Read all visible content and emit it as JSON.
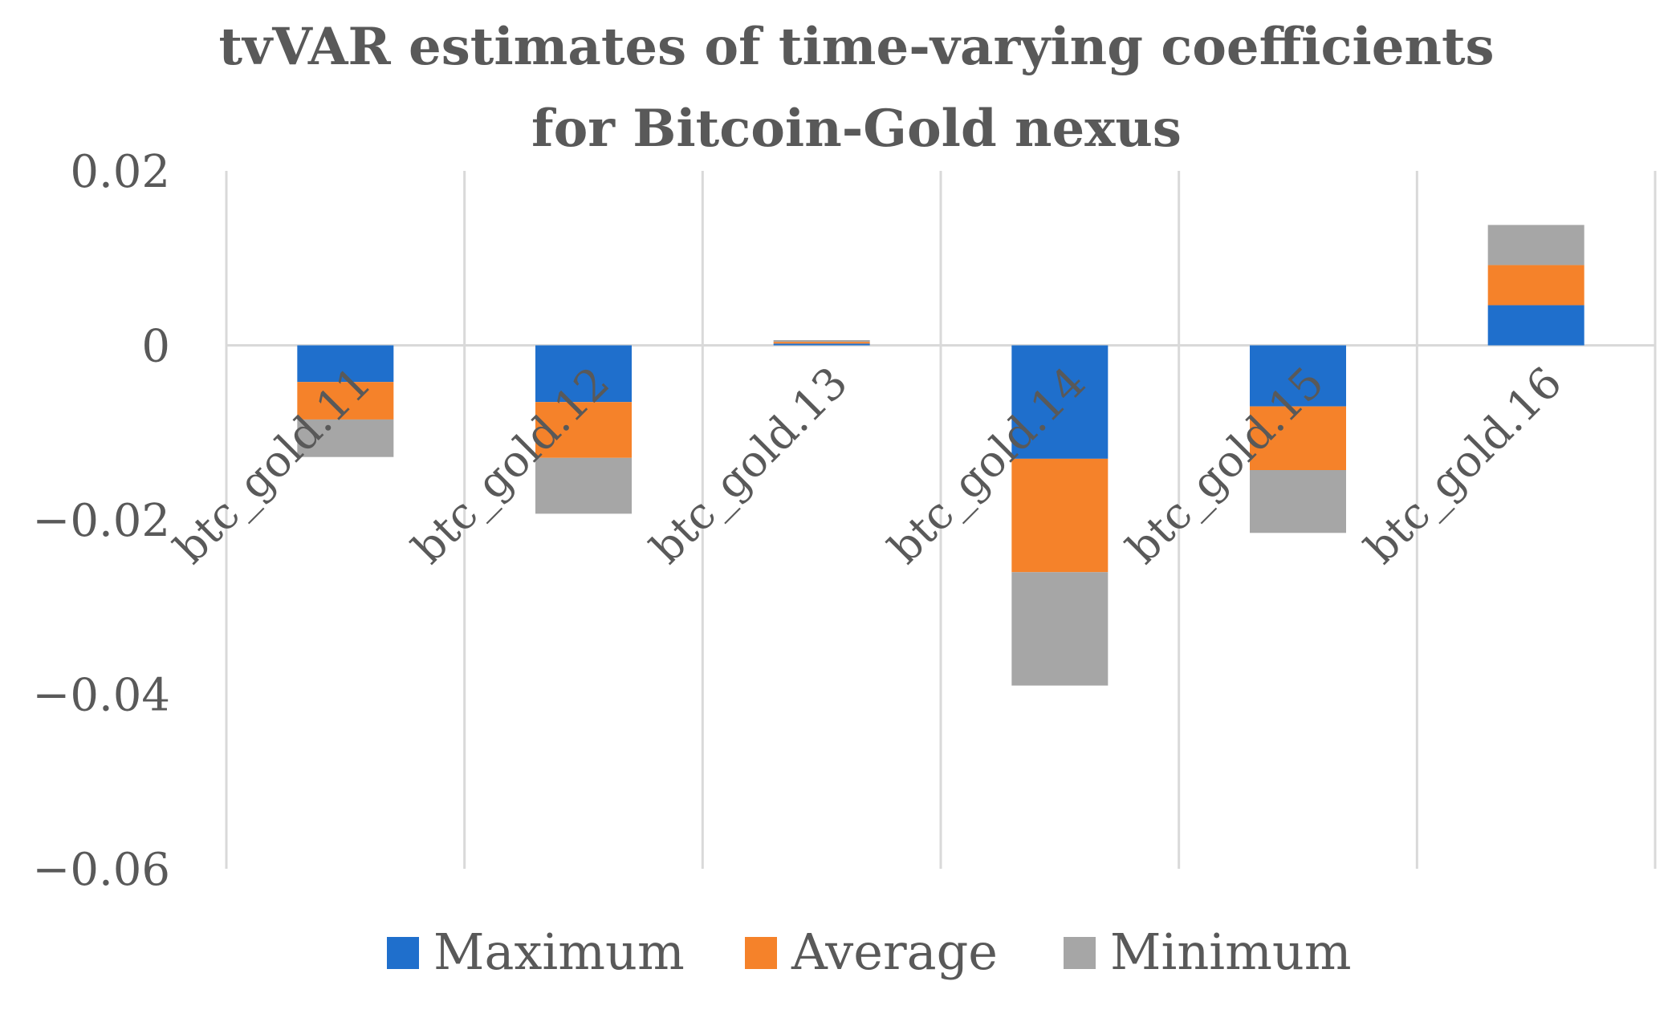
{
  "chart_data": {
    "type": "bar",
    "stacked": true,
    "title": "tvVAR estimates of time-varying coefficients for Bitcoin-Gold nexus",
    "title_lines": [
      "tvVAR estimates of time-varying coefficients",
      "for Bitcoin-Gold nexus"
    ],
    "xlabel": "",
    "ylabel": "",
    "ylim": [
      -0.06,
      0.02
    ],
    "yticks": [
      0.02,
      0,
      -0.02,
      -0.04,
      -0.06
    ],
    "ytick_labels": [
      "0.02",
      "0",
      "−0.02",
      "−0.04",
      "−0.06"
    ],
    "categories": [
      "btc_gold.11",
      "btc_gold.12",
      "btc_gold.13",
      "btc_gold.14",
      "btc_gold.15",
      "btc_gold.16"
    ],
    "series": [
      {
        "name": "Maximum",
        "color": "#1f6fcc",
        "values": [
          -0.0042,
          -0.0065,
          0.0002,
          -0.013,
          -0.007,
          0.0046
        ]
      },
      {
        "name": "Average",
        "color": "#f5822a",
        "values": [
          -0.0043,
          -0.0064,
          0.0002,
          -0.013,
          -0.0073,
          0.0046
        ]
      },
      {
        "name": "Minimum",
        "color": "#a6a6a6",
        "values": [
          -0.0043,
          -0.0064,
          0.0002,
          -0.013,
          -0.0072,
          0.0046
        ]
      }
    ],
    "legend_position": "bottom",
    "grid": "vertical"
  }
}
